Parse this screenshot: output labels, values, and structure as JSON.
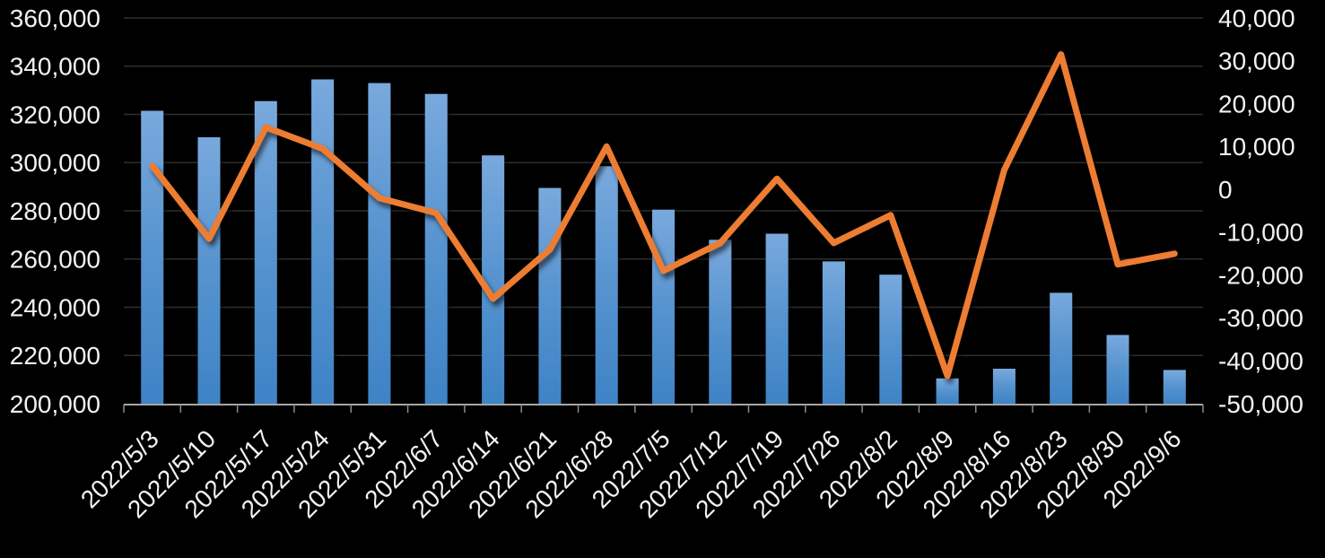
{
  "chart_data": {
    "type": "combo",
    "title": "",
    "categories": [
      "2022/5/3",
      "2022/5/10",
      "2022/5/17",
      "2022/5/24",
      "2022/5/31",
      "2022/6/7",
      "2022/6/14",
      "2022/6/21",
      "2022/6/28",
      "2022/7/5",
      "2022/7/12",
      "2022/7/19",
      "2022/7/26",
      "2022/8/2",
      "2022/8/9",
      "2022/8/16",
      "2022/8/23",
      "2022/8/30",
      "2022/9/6"
    ],
    "series": [
      {
        "name": "bars",
        "type": "bar",
        "axis": "left",
        "values": [
          321500,
          310500,
          325500,
          334500,
          333000,
          328500,
          303000,
          289500,
          298500,
          280500,
          268000,
          270500,
          259000,
          253500,
          210500,
          214500,
          246000,
          228500,
          214000
        ]
      },
      {
        "name": "line",
        "type": "line",
        "axis": "right",
        "values": [
          5500,
          -11500,
          14500,
          9500,
          -2000,
          -5500,
          -25500,
          -14000,
          10000,
          -19000,
          -12500,
          2500,
          -12500,
          -6000,
          -43500,
          4500,
          31500,
          -17500,
          -15000
        ]
      }
    ],
    "left_axis": {
      "min": 200000,
      "max": 360000,
      "step": 20000,
      "tick_labels": [
        "360,000",
        "340,000",
        "320,000",
        "300,000",
        "280,000",
        "260,000",
        "240,000",
        "220,000",
        "200,000"
      ]
    },
    "right_axis": {
      "min": -50000,
      "max": 40000,
      "step": 10000,
      "tick_labels": [
        "40,000",
        "30,000",
        "20,000",
        "10,000",
        "0",
        "-10,000",
        "-20,000",
        "-30,000",
        "-40,000",
        "-50,000"
      ]
    },
    "grid": true,
    "legend": "none",
    "x_tick_rotation": -45
  },
  "colors": {
    "background": "#000000",
    "bar_top": "#79A9DD",
    "bar_mid": "#5693CF",
    "bar_bottom": "#3E83C6",
    "line": "#ED7D31",
    "gridline": "#2E2E2E",
    "axis_line": "#A6A6A6",
    "tick": "#8C8C8C",
    "label": "#F2F2F2"
  }
}
